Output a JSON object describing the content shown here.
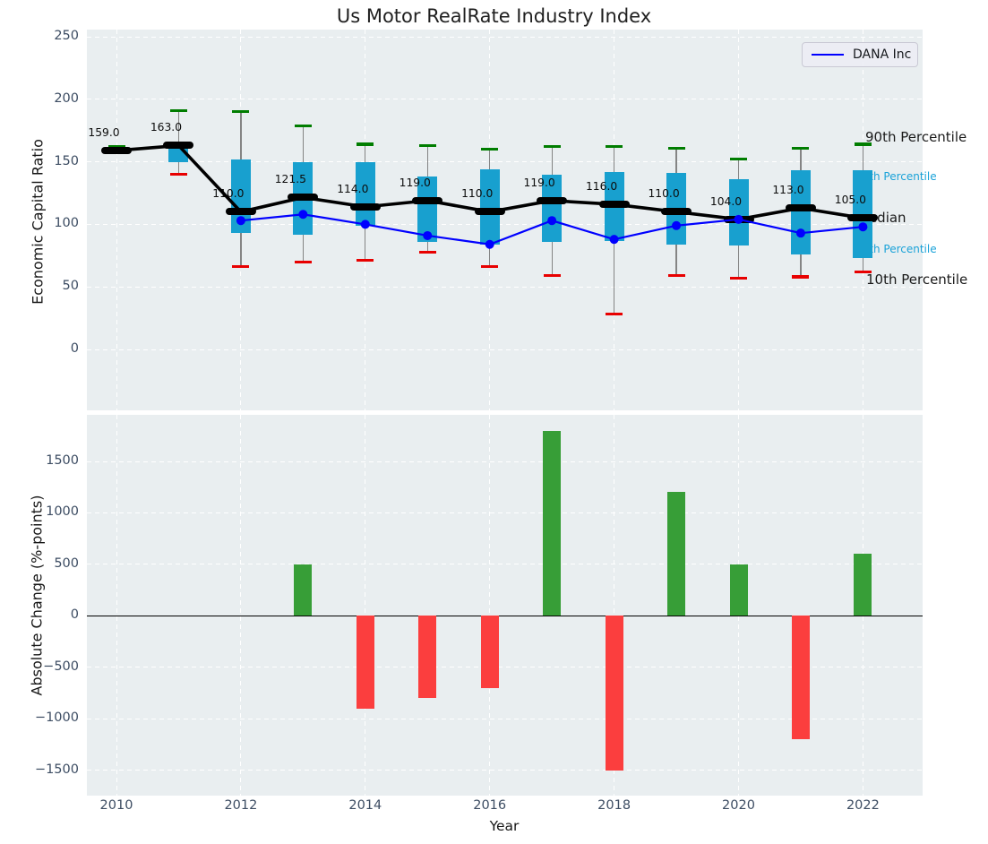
{
  "chart_data": [
    {
      "type": "boxwhisker-line",
      "title": "Us Motor RealRate Industry Index",
      "ylabel": "Economic Capital Ratio",
      "ylim": [
        -50,
        257
      ],
      "yticks": [
        0,
        50,
        100,
        150,
        200,
        250
      ],
      "xticks": [
        2010,
        2012,
        2014,
        2016,
        2018,
        2020,
        2022
      ],
      "x": [
        2010,
        2011,
        2012,
        2013,
        2014,
        2015,
        2016,
        2017,
        2018,
        2019,
        2020,
        2021,
        2022
      ],
      "grid": true,
      "legend_label": "DANA Inc",
      "legend_position": "upper right",
      "series": [
        {
          "name": "90th Percentile",
          "values": [
            162.5,
            191,
            190,
            179,
            164,
            163,
            160,
            162,
            162,
            161,
            152,
            161,
            164
          ],
          "color": "#007d00"
        },
        {
          "name": "75th Percentile",
          "values": [
            161,
            163,
            152,
            150,
            150,
            138,
            144,
            140,
            142,
            141,
            136,
            143,
            143
          ],
          "color": "#18a0cf"
        },
        {
          "name": "Median",
          "values": [
            159,
            163,
            110,
            121.5,
            114,
            119,
            110,
            119,
            116,
            110,
            104,
            113,
            105
          ],
          "color": "#000000"
        },
        {
          "name": "25th Percentile",
          "values": [
            156,
            150,
            93,
            92,
            99,
            86,
            84,
            86,
            87,
            84,
            83,
            76,
            73
          ],
          "color": "#18a0cf"
        },
        {
          "name": "10th Percentile",
          "values": [
            157,
            140,
            66,
            70,
            71,
            78,
            66,
            59,
            28,
            59,
            57,
            58,
            62
          ],
          "color": "#e80000"
        },
        {
          "name": "DANA Inc",
          "values": [
            null,
            null,
            103,
            108,
            100,
            91,
            84,
            103,
            88,
            99,
            104,
            93,
            98
          ],
          "color": "#0000ff"
        }
      ],
      "median_labels": [
        "159.0",
        "163.0",
        "110.0",
        "121.5",
        "114.0",
        "119.0",
        "110.0",
        "119.0",
        "116.0",
        "110.0",
        "104.0",
        "113.0",
        "105.0"
      ],
      "right_labels": [
        {
          "text": "90th Percentile",
          "color": "#1a1a1a",
          "size": 15
        },
        {
          "text": "75th Percentile",
          "color": "#1aa2d8",
          "size": 12
        },
        {
          "text": "Median",
          "color": "#1a1a1a",
          "size": 15
        },
        {
          "text": "25th Percentile",
          "color": "#1aa2d8",
          "size": 12
        },
        {
          "text": "10th Percentile",
          "color": "#1a1a1a",
          "size": 15
        }
      ],
      "box_color": "#18a0cf",
      "whisker_color": "#848484",
      "median_color": "#000000",
      "dana_line_color": "#0000ff",
      "plot_bg": "#e9eef0"
    },
    {
      "type": "bar",
      "ylabel": "Absolute Change (%-points)",
      "xlabel": "Year",
      "yticks": [
        -1500,
        -1000,
        -500,
        0,
        500,
        1000,
        1500
      ],
      "xticks": [
        2010,
        2012,
        2014,
        2016,
        2018,
        2020,
        2022
      ],
      "categories": [
        2013,
        2014,
        2015,
        2016,
        2017,
        2018,
        2019,
        2020,
        2021,
        2022
      ],
      "values": [
        500,
        -900,
        -800,
        -700,
        1800,
        -1500,
        1200,
        500,
        -1200,
        600
      ],
      "positive_color": "#379e37",
      "negative_color": "#fb3e3e",
      "grid": true,
      "plot_bg": "#e9eef0"
    }
  ]
}
